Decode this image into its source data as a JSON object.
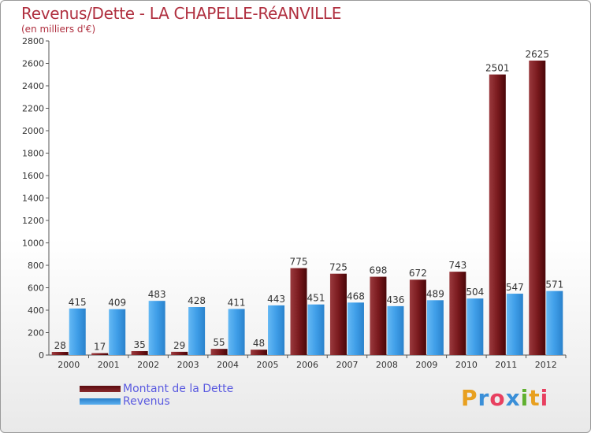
{
  "title": "Revenus/Dette - LA CHAPELLE-RéANVILLE",
  "subtitle": "(en milliers d'€)",
  "chart_data": {
    "type": "bar",
    "categories": [
      "2000",
      "2001",
      "2002",
      "2003",
      "2004",
      "2005",
      "2006",
      "2007",
      "2008",
      "2009",
      "2010",
      "2011",
      "2012"
    ],
    "series": [
      {
        "name": "Montant de la Dette",
        "color": "#7a1a1e",
        "values": [
          28,
          17,
          35,
          29,
          55,
          48,
          775,
          725,
          698,
          672,
          743,
          2501,
          2625
        ]
      },
      {
        "name": "Revenus",
        "color": "#3f9ee8",
        "values": [
          415,
          409,
          483,
          428,
          411,
          443,
          451,
          468,
          436,
          489,
          504,
          547,
          571
        ]
      }
    ],
    "ylim": [
      0,
      2800
    ],
    "yticks": [
      0,
      200,
      400,
      600,
      800,
      1000,
      1200,
      1400,
      1600,
      1800,
      2000,
      2200,
      2400,
      2600,
      2800
    ],
    "grid": false,
    "legend_position": "bottom-left"
  },
  "legend": {
    "dette_label": "Montant de la Dette",
    "revenus_label": "Revenus"
  },
  "logo": {
    "letters": [
      "P",
      "r",
      "o",
      "x",
      "i",
      "t",
      "i"
    ],
    "colors": [
      "#e8a020",
      "#3a8fd8",
      "#e84060",
      "#3a8fd8",
      "#60b030",
      "#e8a020",
      "#e84060"
    ]
  }
}
